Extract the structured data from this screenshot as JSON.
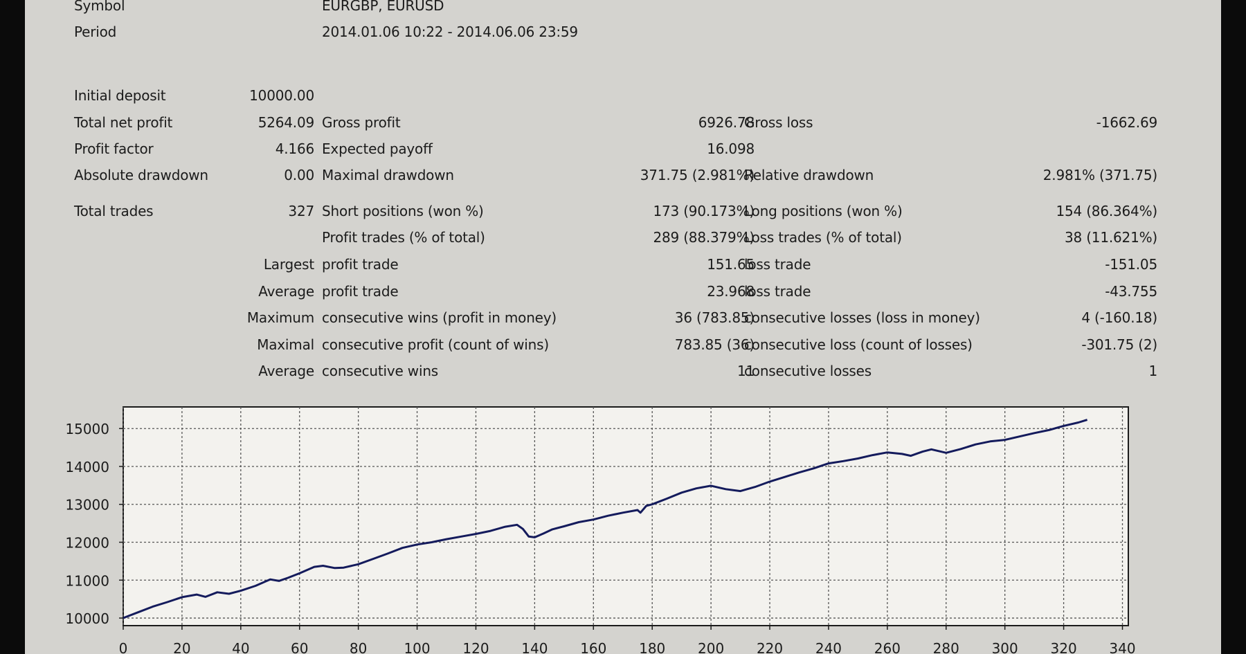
{
  "header": {
    "symbol_label": "Symbol",
    "symbol_value": "EURGBP, EURUSD",
    "period_label": "Period",
    "period_value": "2014.01.06 10:22 - 2014.06.06 23:59"
  },
  "stats": {
    "initial_deposit": {
      "label": "Initial deposit",
      "value": "10000.00"
    },
    "total_net_profit": {
      "label": "Total net profit",
      "value": "5264.09"
    },
    "gross_profit": {
      "label": "Gross profit",
      "value": "6926.78"
    },
    "gross_loss": {
      "label": "Gross loss",
      "value": "-1662.69"
    },
    "profit_factor": {
      "label": "Profit factor",
      "value": "4.166"
    },
    "expected_payoff": {
      "label": "Expected payoff",
      "value": "16.098"
    },
    "absolute_drawdown": {
      "label": "Absolute drawdown",
      "value": "0.00"
    },
    "maximal_drawdown": {
      "label": "Maximal drawdown",
      "value": "371.75 (2.981%)"
    },
    "relative_drawdown": {
      "label": "Relative drawdown",
      "value": "2.981% (371.75)"
    },
    "total_trades": {
      "label": "Total trades",
      "value": "327"
    },
    "short_positions": {
      "label": "Short positions (won %)",
      "value": "173 (90.173%)"
    },
    "long_positions": {
      "label": "Long positions (won %)",
      "value": "154 (86.364%)"
    },
    "profit_trades": {
      "label": "Profit trades (% of total)",
      "value": "289 (88.379%)"
    },
    "loss_trades": {
      "label": "Loss trades (% of total)",
      "value": "38 (11.621%)"
    },
    "largest": {
      "prefix": "Largest",
      "profit_label": "profit trade",
      "profit_value": "151.65",
      "loss_label": "loss trade",
      "loss_value": "-151.05"
    },
    "average": {
      "prefix": "Average",
      "profit_label": "profit trade",
      "profit_value": "23.968",
      "loss_label": "loss trade",
      "loss_value": "-43.755"
    },
    "maximum_consecutive": {
      "prefix": "Maximum",
      "wins_label": "consecutive wins (profit in money)",
      "wins_value": "36 (783.85)",
      "losses_label": "consecutive losses (loss in money)",
      "losses_value": "4 (-160.18)"
    },
    "maximal_consecutive": {
      "prefix": "Maximal",
      "profit_label": "consecutive profit (count of wins)",
      "profit_value": "783.85 (36)",
      "loss_label": "consecutive loss (count of losses)",
      "loss_value": "-301.75 (2)"
    },
    "average_consecutive": {
      "prefix": "Average",
      "wins_label": "consecutive wins",
      "wins_value": "11",
      "losses_label": "consecutive losses",
      "losses_value": "1"
    }
  },
  "chart_data": {
    "type": "line",
    "title": "",
    "xlabel": "",
    "ylabel": "",
    "xlim": [
      0,
      342
    ],
    "ylim": [
      9800,
      15570
    ],
    "xticks": [
      0,
      20,
      40,
      60,
      80,
      100,
      120,
      140,
      160,
      180,
      200,
      220,
      240,
      260,
      280,
      300,
      320,
      340
    ],
    "yticks": [
      10000,
      11000,
      12000,
      13000,
      14000,
      15000
    ],
    "grid": true,
    "line_color": "#141b5c",
    "series": [
      {
        "x": [
          0,
          5,
          10,
          15,
          20,
          25,
          28,
          32,
          36,
          40,
          45,
          50,
          53,
          56,
          60,
          65,
          68,
          72,
          75,
          80,
          85,
          90,
          95,
          100,
          105,
          110,
          115,
          120,
          125,
          130,
          134,
          136,
          138,
          140,
          143,
          146,
          150,
          155,
          160,
          165,
          170,
          175,
          176,
          178,
          180,
          185,
          190,
          195,
          200,
          205,
          210,
          215,
          220,
          225,
          230,
          235,
          240,
          245,
          250,
          255,
          260,
          265,
          268,
          272,
          275,
          280,
          285,
          290,
          295,
          300,
          305,
          310,
          315,
          320,
          325,
          328
        ],
        "y": [
          10000,
          10150,
          10300,
          10420,
          10550,
          10620,
          10560,
          10680,
          10640,
          10720,
          10850,
          11020,
          10980,
          11060,
          11180,
          11350,
          11380,
          11320,
          11330,
          11420,
          11560,
          11700,
          11850,
          11940,
          12000,
          12080,
          12150,
          12220,
          12300,
          12410,
          12460,
          12350,
          12150,
          12130,
          12230,
          12340,
          12420,
          12530,
          12600,
          12700,
          12780,
          12850,
          12780,
          12960,
          13000,
          13150,
          13310,
          13420,
          13490,
          13400,
          13350,
          13460,
          13600,
          13720,
          13840,
          13950,
          14080,
          14140,
          14210,
          14300,
          14370,
          14330,
          14280,
          14390,
          14450,
          14360,
          14460,
          14580,
          14660,
          14700,
          14790,
          14880,
          14960,
          15070,
          15160,
          15230
        ]
      }
    ]
  }
}
